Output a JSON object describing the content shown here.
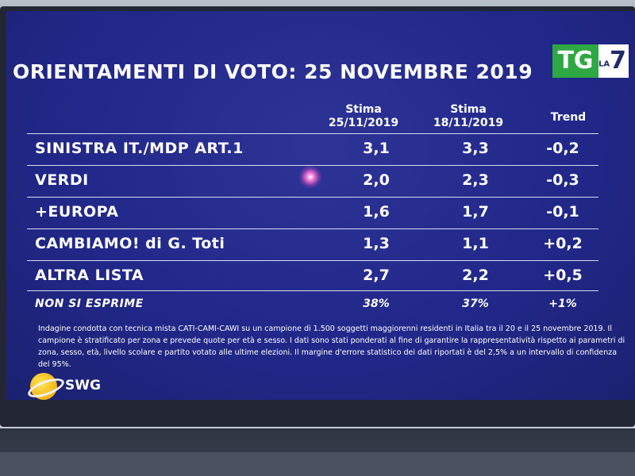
{
  "title": "ORIENTAMENTI DI VOTO: 25 NOVEMBRE 2019",
  "logo": {
    "tg": "TG",
    "la": "LA",
    "seven": "7"
  },
  "columns": {
    "c1_l1": "Stima",
    "c1_l2": "25/11/2019",
    "c2_l1": "Stima",
    "c2_l2": "18/11/2019",
    "c3": "Trend"
  },
  "rows": [
    {
      "party": "SINISTRA IT./MDP ART.1",
      "v1": "3,1",
      "v2": "3,3",
      "trend": "-0,2"
    },
    {
      "party": "VERDI",
      "v1": "2,0",
      "v2": "2,3",
      "trend": "-0,3"
    },
    {
      "party": "+EUROPA",
      "v1": "1,6",
      "v2": "1,7",
      "trend": "-0,1"
    },
    {
      "party": "CAMBIAMO! di G. Toti",
      "v1": "1,3",
      "v2": "1,1",
      "trend": "+0,2"
    },
    {
      "party": "ALTRA LISTA",
      "v1": "2,7",
      "v2": "2,2",
      "trend": "+0,5"
    },
    {
      "party": "NON SI ESPRIME",
      "v1": "38%",
      "v2": "37%",
      "trend": "+1%"
    }
  ],
  "note": "Indagine condotta con tecnica mista CATI-CAMI-CAWI su un campione di 1.500 soggetti maggiorenni residenti in Italia tra il 20 e il 25 novembre 2019. Il campione è stratificato per zona e prevede quote per età e sesso. I dati sono stati ponderati al fine di garantire la rappresentatività rispetto ai parametri di zona, sesso, età, livello scolare e partito votato alle ultime elezioni. Il margine d'errore statistico dei dati riportati è del 2,5% a un intervallo di confidenza del 95%.",
  "brand": "SWG"
}
